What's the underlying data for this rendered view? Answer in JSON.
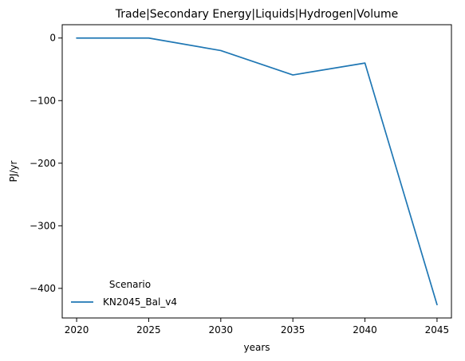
{
  "chart_data": {
    "type": "line",
    "title": "Trade|Secondary Energy|Liquids|Hydrogen|Volume",
    "xlabel": "years",
    "ylabel": "PJ/yr",
    "x": [
      2020,
      2025,
      2030,
      2035,
      2040,
      2045
    ],
    "series": [
      {
        "name": "KN2045_Bal_v4",
        "values": [
          0,
          0,
          -20,
          -59,
          -40,
          -426
        ]
      }
    ],
    "xticks": [
      2020,
      2025,
      2030,
      2035,
      2040,
      2045
    ],
    "yticks": [
      0,
      -100,
      -200,
      -300,
      -400
    ],
    "ytick_labels": [
      "0",
      "−100",
      "−200",
      "−300",
      "−400"
    ],
    "xlim": [
      2019,
      2046
    ],
    "ylim": [
      -447.3,
      21.3
    ],
    "grid": false,
    "legend": {
      "title": "Scenario",
      "placement": "lower-left",
      "frame": false
    },
    "colors": {
      "series": "#1f77b4",
      "axes": "#000000",
      "background": "#ffffff"
    }
  }
}
